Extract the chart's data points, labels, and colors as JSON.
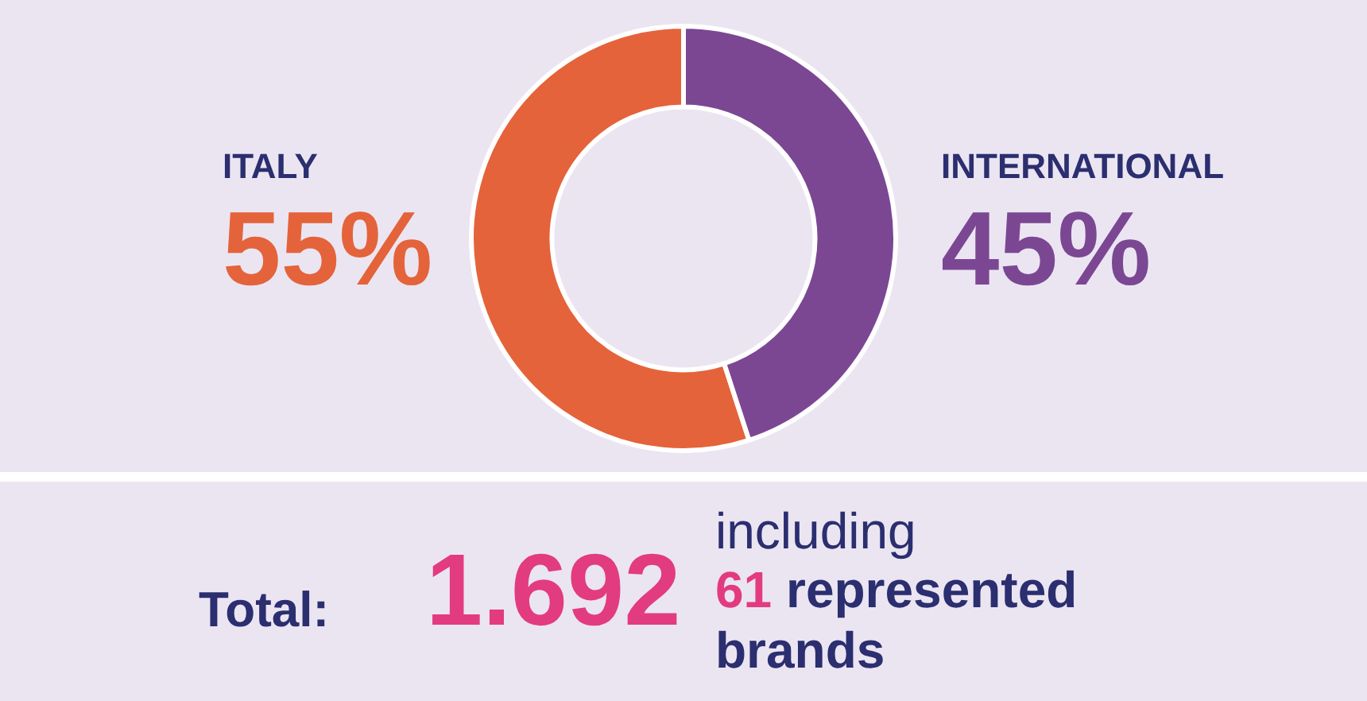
{
  "chart_data": {
    "type": "donut",
    "categories": [
      "ITALY",
      "INTERNATIONAL"
    ],
    "values": [
      55,
      45
    ],
    "colors": [
      "#e4633a",
      "#7b4793"
    ],
    "value_labels": [
      "55%",
      "45%"
    ],
    "annotations": [
      "Total:",
      "1.692",
      "including",
      "61",
      "represented brands"
    ]
  }
}
